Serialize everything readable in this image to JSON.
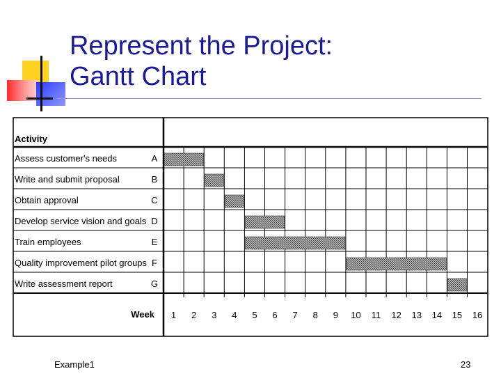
{
  "title": {
    "line1": "Represent the Project:",
    "line2": "Gantt Chart"
  },
  "chart_data": {
    "type": "gantt",
    "header": "Activity",
    "week_label": "Week",
    "weeks": [
      "1",
      "2",
      "3",
      "4",
      "5",
      "6",
      "7",
      "8",
      "9",
      "10",
      "11",
      "12",
      "13",
      "14",
      "15",
      "16"
    ],
    "activities": [
      {
        "name": "Assess customer's needs",
        "code": "A",
        "start": 1,
        "end": 2
      },
      {
        "name": "Write and submit proposal",
        "code": "B",
        "start": 3,
        "end": 3
      },
      {
        "name": "Obtain approval",
        "code": "C",
        "start": 4,
        "end": 4
      },
      {
        "name": "Develop service vision and goals",
        "code": "D",
        "start": 5,
        "end": 6
      },
      {
        "name": "Train employees",
        "code": "E",
        "start": 5,
        "end": 9
      },
      {
        "name": "Quality improvement pilot groups",
        "code": "F",
        "start": 10,
        "end": 14
      },
      {
        "name": "Write assessment report",
        "code": "G",
        "start": 15,
        "end": 15
      }
    ]
  },
  "footer": {
    "left": "Example1",
    "right": "23"
  },
  "colors": {
    "title": "#1a1a99",
    "bar": "#444444"
  }
}
